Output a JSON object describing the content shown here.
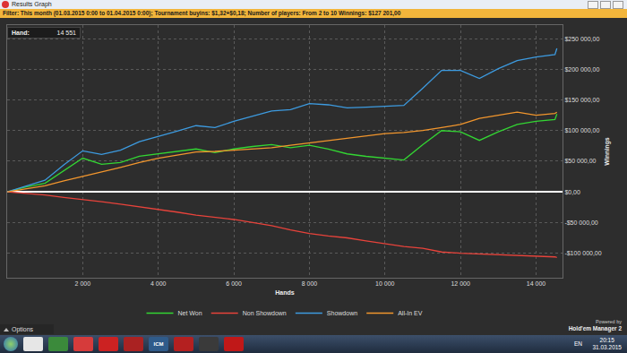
{
  "window": {
    "title": "Results Graph",
    "filter": "Filter: This month (01.03.2015 0:00 to 01.04.2015 0:00); Tournament buyins: $1,32+$0,18; Number of players: From 2 to 10 Winnings: $127 201,00",
    "hand_label": "Hand:",
    "hand_value": "14 551",
    "options": "Options",
    "powered_by": "Powered by",
    "brand": "Hold'em Manager 2"
  },
  "taskbar": {
    "icons": [
      "ICM"
    ],
    "language": "EN",
    "time": "20:15",
    "date": "31.03.2015"
  },
  "chart_data": {
    "type": "line",
    "x_label": "Hands",
    "y_label": "Winnings",
    "x": [
      0,
      500,
      1000,
      1500,
      2000,
      2500,
      3000,
      3500,
      4000,
      4500,
      5000,
      5500,
      6000,
      6500,
      7000,
      7500,
      8000,
      8500,
      9000,
      9500,
      10000,
      10500,
      11000,
      11500,
      12000,
      12500,
      13000,
      13500,
      14000,
      14500,
      14551
    ],
    "series": [
      {
        "name": "Net Won",
        "color": "#33d633",
        "values": [
          0,
          8000,
          14000,
          35000,
          55000,
          45000,
          48000,
          58000,
          62000,
          66000,
          70000,
          64000,
          70000,
          74000,
          77000,
          72000,
          76000,
          70000,
          62000,
          58000,
          55000,
          52000,
          77000,
          100000,
          98000,
          84000,
          98000,
          110000,
          115000,
          118000,
          127000
        ]
      },
      {
        "name": "Non Showdown",
        "color": "#e8433b",
        "values": [
          0,
          -2000,
          -5000,
          -9000,
          -12000,
          -16000,
          -20000,
          -24000,
          -28000,
          -33000,
          -38000,
          -41000,
          -45000,
          -50000,
          -55000,
          -62000,
          -68000,
          -72000,
          -75000,
          -80000,
          -85000,
          -89000,
          -92000,
          -98000,
          -100000,
          -101000,
          -103000,
          -104000,
          -105000,
          -106000,
          -107000
        ]
      },
      {
        "name": "Showdown",
        "color": "#3d9be0",
        "values": [
          0,
          10000,
          19000,
          44000,
          67000,
          61000,
          68000,
          82000,
          90000,
          99000,
          108000,
          105000,
          115000,
          124000,
          132000,
          134000,
          144000,
          142000,
          137000,
          138000,
          140000,
          141000,
          169000,
          198000,
          198000,
          185000,
          201000,
          214000,
          220000,
          224000,
          234000
        ]
      },
      {
        "name": "All-In EV",
        "color": "#f2962d",
        "values": [
          0,
          5000,
          10000,
          18000,
          25000,
          32000,
          40000,
          48000,
          55000,
          60000,
          65000,
          66000,
          68000,
          70000,
          72000,
          76000,
          80000,
          84000,
          88000,
          92000,
          95000,
          97000,
          100000,
          105000,
          110000,
          120000,
          125000,
          130000,
          125000,
          128000,
          130000
        ]
      }
    ],
    "xlim": [
      0,
      14700
    ],
    "xticks": [
      {
        "value": 2000,
        "label": "2 000"
      },
      {
        "value": 4000,
        "label": "4 000"
      },
      {
        "value": 6000,
        "label": "6 000"
      },
      {
        "value": 8000,
        "label": "8 000"
      },
      {
        "value": 10000,
        "label": "10 000"
      },
      {
        "value": 12000,
        "label": "12 000"
      },
      {
        "value": 14000,
        "label": "14 000"
      }
    ],
    "ylim": [
      -140000,
      272000
    ],
    "yticks": [
      {
        "value": -100000,
        "label": "-$100 000,00"
      },
      {
        "value": -50000,
        "label": "-$50 000,00"
      },
      {
        "value": 0,
        "label": "$0,00"
      },
      {
        "value": 50000,
        "label": "$50 000,00"
      },
      {
        "value": 100000,
        "label": "$100 000,00"
      },
      {
        "value": 150000,
        "label": "$150 000,00"
      },
      {
        "value": 200000,
        "label": "$200 000,00"
      },
      {
        "value": 250000,
        "label": "$250 000,00"
      }
    ],
    "grid": true,
    "legend": "bottom"
  }
}
